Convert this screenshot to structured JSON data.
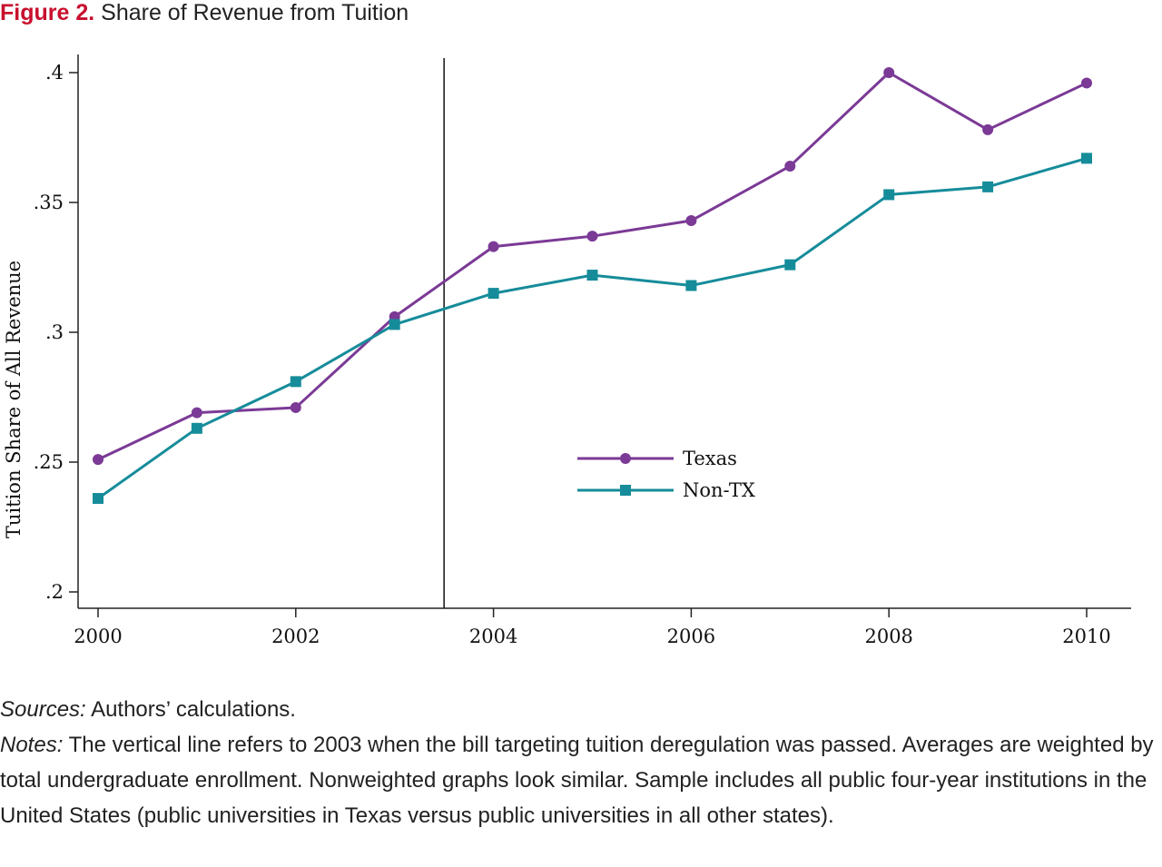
{
  "figure": {
    "label": "Figure 2.",
    "title": "Share of Revenue from Tuition"
  },
  "chart_data": {
    "type": "line",
    "title": "",
    "xlabel": "",
    "ylabel": "Tuition Share of All Revenue",
    "xlim": [
      2000,
      2010
    ],
    "ylim": [
      0.2,
      0.4
    ],
    "x_ticks": [
      2000,
      2002,
      2004,
      2006,
      2008,
      2010
    ],
    "x_tick_labels": [
      "2000",
      "2002",
      "2004",
      "2006",
      "2008",
      "2010"
    ],
    "y_ticks": [
      0.2,
      0.25,
      0.3,
      0.35,
      0.4
    ],
    "y_tick_labels": [
      ".2",
      ".25",
      ".3",
      ".35",
      ".4"
    ],
    "grid": false,
    "legend_position": "center-right",
    "reference_line": {
      "x": 2003.5
    },
    "x": [
      2000,
      2001,
      2002,
      2003,
      2004,
      2005,
      2006,
      2007,
      2008,
      2009,
      2010
    ],
    "series": [
      {
        "name": "Texas",
        "marker": "circle",
        "color": "#7b3a96",
        "values": [
          0.251,
          0.269,
          0.271,
          0.306,
          0.333,
          0.337,
          0.343,
          0.364,
          0.4,
          0.378,
          0.396
        ]
      },
      {
        "name": "Non-TX",
        "marker": "square",
        "color": "#168c9a",
        "values": [
          0.236,
          0.263,
          0.281,
          0.303,
          0.315,
          0.322,
          0.318,
          0.326,
          0.353,
          0.356,
          0.367
        ]
      }
    ]
  },
  "notes": {
    "sources_label": "Sources:",
    "sources_text": " Authors’ calculations.",
    "notes_label": "Notes:",
    "notes_text": " The vertical line refers to 2003 when the bill targeting tuition deregulation was passed. Averages are weighted by total undergraduate enrollment. Nonweighted graphs look similar. Sample includes all public four-year institutions in the United States (public universities in Texas versus public universities in all other states)."
  }
}
